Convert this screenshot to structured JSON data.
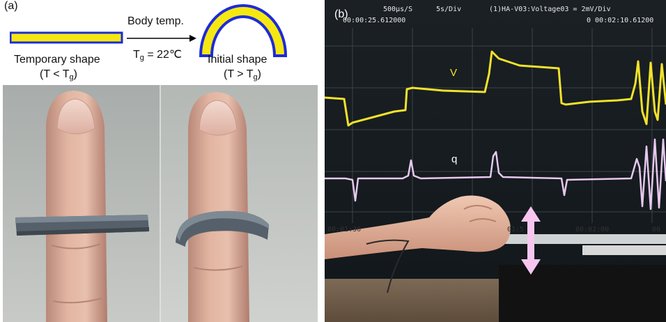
{
  "panel_a": {
    "label": "(a)",
    "arrow_top": "Body temp.",
    "tg_prefix": "T",
    "tg_sub": "g",
    "tg_value": " = 22℃",
    "temp_shape_title": "Temporary shape",
    "temp_shape_cond_pre": "(T < T",
    "temp_shape_cond_sub": "g",
    "temp_shape_cond_post": ")",
    "init_shape_title": "Initial shape",
    "init_shape_cond_pre": "(T > T",
    "init_shape_cond_sub": "g",
    "init_shape_cond_post": ")",
    "colors": {
      "strip_fill": "#f5e812",
      "strip_outline": "#1d2bd8"
    }
  },
  "panel_b": {
    "label": "(b)",
    "osc_header_rate": "500µs/S",
    "osc_header_div": "5s/Div",
    "osc_header_channel": "(1)HA-V03:Voltage03 = 2mV/Div",
    "osc_time_left": "00:00:25.612000",
    "osc_time_right": "0 00:02:10.61200",
    "trace_v_label": "V",
    "trace_q_label": "q",
    "time_ticks": [
      "00:01:30",
      "01:5",
      "00:02:00",
      "00"
    ],
    "colors": {
      "trace_v": "#f2e22a",
      "trace_q": "#e7c8ee",
      "arrow": "#f6c6f0"
    }
  }
}
